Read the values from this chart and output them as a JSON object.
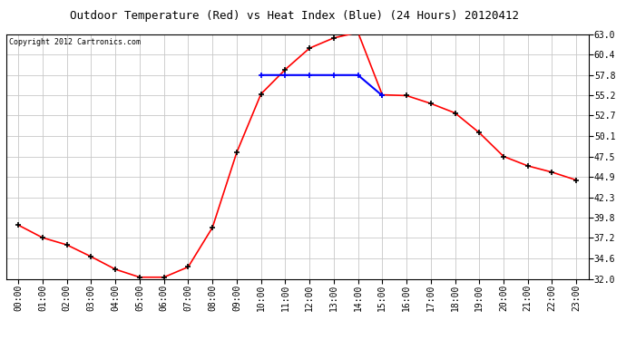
{
  "title": "Outdoor Temperature (Red) vs Heat Index (Blue) (24 Hours) 20120412",
  "copyright": "Copyright 2012 Cartronics.com",
  "background_color": "#ffffff",
  "grid_color": "#c8c8c8",
  "temp_color": "red",
  "heat_color": "blue",
  "marker": "+",
  "marker_size": 5,
  "marker_linewidth": 1.2,
  "marker_color_temp": "black",
  "marker_color_heat": "blue",
  "line_width": 1.2,
  "ylim": [
    32.0,
    63.0
  ],
  "yticks": [
    32.0,
    34.6,
    37.2,
    39.8,
    42.3,
    44.9,
    47.5,
    50.1,
    52.7,
    55.2,
    57.8,
    60.4,
    63.0
  ],
  "hours": [
    0,
    1,
    2,
    3,
    4,
    5,
    6,
    7,
    8,
    9,
    10,
    11,
    12,
    13,
    14,
    15,
    16,
    17,
    18,
    19,
    20,
    21,
    22,
    23
  ],
  "xlabels": [
    "00:00",
    "01:00",
    "02:00",
    "03:00",
    "04:00",
    "05:00",
    "06:00",
    "07:00",
    "08:00",
    "09:00",
    "10:00",
    "11:00",
    "12:00",
    "13:00",
    "14:00",
    "15:00",
    "16:00",
    "17:00",
    "18:00",
    "19:00",
    "20:00",
    "21:00",
    "22:00",
    "23:00"
  ],
  "temp_values": [
    38.8,
    37.2,
    36.3,
    34.8,
    33.2,
    32.2,
    32.2,
    33.5,
    38.5,
    48.0,
    55.4,
    58.5,
    61.2,
    62.5,
    63.2,
    55.3,
    55.2,
    54.2,
    53.0,
    50.5,
    47.5,
    46.3,
    45.5,
    44.5
  ],
  "heat_hours": [
    10,
    11,
    12,
    13,
    14,
    15
  ],
  "heat_values": [
    57.8,
    57.8,
    57.8,
    57.8,
    57.8,
    55.2
  ],
  "title_fontsize": 9,
  "tick_fontsize": 7,
  "copyright_fontsize": 6
}
